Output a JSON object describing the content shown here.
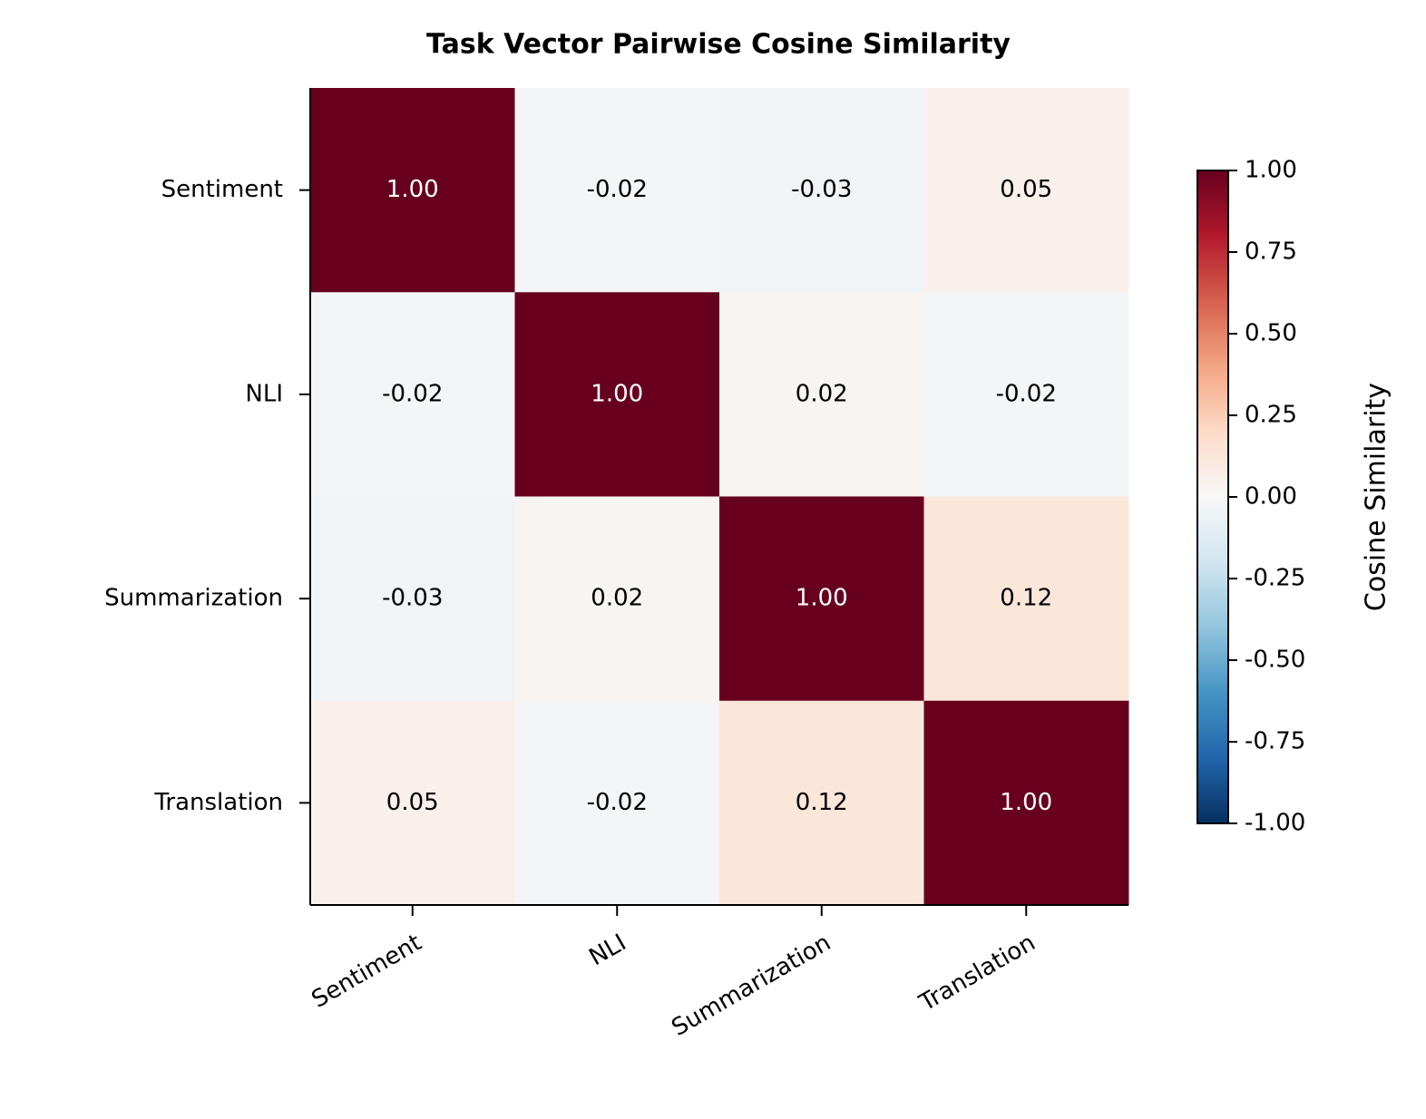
{
  "chart_data": {
    "type": "heatmap",
    "title": "Task Vector Pairwise Cosine Similarity",
    "x_categories": [
      "Sentiment",
      "NLI",
      "Summarization",
      "Translation"
    ],
    "y_categories": [
      "Sentiment",
      "NLI",
      "Summarization",
      "Translation"
    ],
    "values": [
      [
        1.0,
        -0.02,
        -0.03,
        0.05
      ],
      [
        -0.02,
        1.0,
        0.02,
        -0.02
      ],
      [
        -0.03,
        0.02,
        1.0,
        0.12
      ],
      [
        0.05,
        -0.02,
        0.12,
        1.0
      ]
    ],
    "value_labels": [
      [
        "1.00",
        "-0.02",
        "-0.03",
        "0.05"
      ],
      [
        "-0.02",
        "1.00",
        "0.02",
        "-0.02"
      ],
      [
        "-0.03",
        "0.02",
        "1.00",
        "0.12"
      ],
      [
        "0.05",
        "-0.02",
        "0.12",
        "1.00"
      ]
    ],
    "colormap": "RdBu_r",
    "clim": [
      -1,
      1
    ],
    "colorbar_label": "Cosine Similarity",
    "colorbar_ticks": [
      {
        "value": -1,
        "label": "-1.00"
      },
      {
        "value": -0.75,
        "label": "-0.75"
      },
      {
        "value": -0.5,
        "label": "-0.50"
      },
      {
        "value": -0.25,
        "label": "-0.25"
      },
      {
        "value": 0,
        "label": "0.00"
      },
      {
        "value": 0.25,
        "label": "0.25"
      },
      {
        "value": 0.5,
        "label": "0.50"
      },
      {
        "value": 0.75,
        "label": "0.75"
      },
      {
        "value": 1,
        "label": "1.00"
      }
    ]
  }
}
